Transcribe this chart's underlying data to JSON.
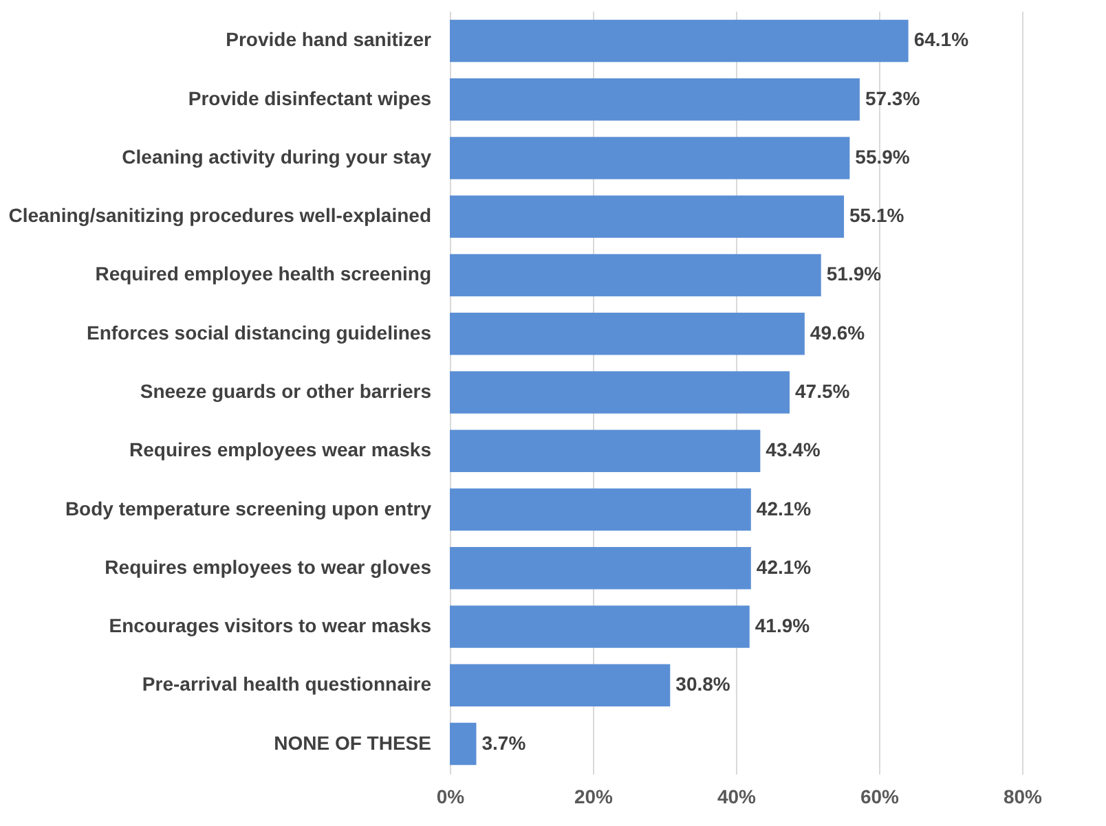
{
  "chart_data": {
    "type": "bar",
    "orientation": "horizontal",
    "categories": [
      "Provide hand sanitizer",
      "Provide disinfectant wipes",
      "Cleaning activity during your stay",
      "Cleaning/sanitizing procedures well-explained",
      "Required employee health screening",
      "Enforces social distancing guidelines",
      "Sneeze guards or other barriers",
      "Requires employees wear masks",
      "Body temperature screening upon entry",
      "Requires employees to wear gloves",
      "Encourages visitors to wear masks",
      "Pre-arrival health questionnaire",
      "NONE OF THESE"
    ],
    "values": [
      64.1,
      57.3,
      55.9,
      55.1,
      51.9,
      49.6,
      47.5,
      43.4,
      42.1,
      42.1,
      41.9,
      30.8,
      3.7
    ],
    "value_labels": [
      "64.1%",
      "57.3%",
      "55.9%",
      "55.1%",
      "51.9%",
      "49.6%",
      "47.5%",
      "43.4%",
      "42.1%",
      "42.1%",
      "41.9%",
      "30.8%",
      "3.7%"
    ],
    "color": "#5b8fd5",
    "xlim": [
      0,
      80
    ],
    "xticks": [
      {
        "value": 0,
        "label": "0%"
      },
      {
        "value": 20,
        "label": "20%"
      },
      {
        "value": 40,
        "label": "40%"
      },
      {
        "value": 60,
        "label": "60%"
      },
      {
        "value": 80,
        "label": "80%"
      }
    ],
    "grid": "x"
  }
}
